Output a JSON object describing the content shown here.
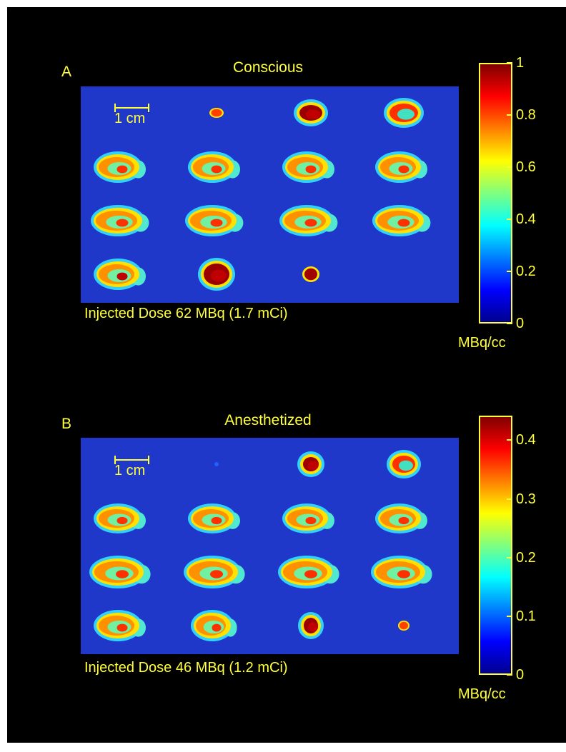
{
  "panels": [
    {
      "letter": "A",
      "title": "Conscious",
      "scale_label": "1 cm",
      "caption": "Injected Dose 62 MBq (1.7 mCi)",
      "colorbar": {
        "ticks": [
          "0",
          "0.2",
          "0.4",
          "0.6",
          "0.8",
          "1"
        ],
        "unit": "MBq/cc"
      }
    },
    {
      "letter": "B",
      "title": "Anesthetized",
      "scale_label": "1 cm",
      "caption": "Injected Dose 46 MBq (1.2 mCi)",
      "colorbar": {
        "ticks": [
          "0",
          "0.1",
          "0.2",
          "0.3",
          "0.4"
        ],
        "unit": "MBq/cc"
      }
    }
  ],
  "colors": {
    "text": "#ffff3a",
    "background": "#000000",
    "image_bg": "#1f38c9"
  }
}
